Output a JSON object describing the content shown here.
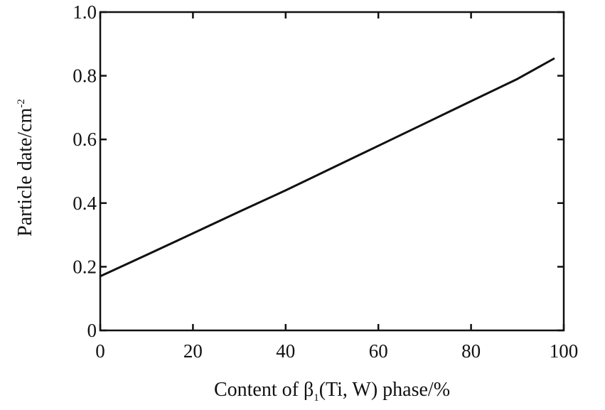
{
  "chart_data": {
    "type": "line",
    "xlabel": {
      "prefix": "Content of  β",
      "subscript": "1",
      "suffix": "(Ti, W) phase/%"
    },
    "ylabel": {
      "main": "Particle date/cm",
      "superscript": "-2"
    },
    "xlim": [
      0,
      100
    ],
    "ylim": [
      0,
      1.0
    ],
    "x_ticks": [
      0,
      20,
      40,
      60,
      80,
      100
    ],
    "x_tick_labels": [
      "0",
      "20",
      "40",
      "60",
      "80",
      "100"
    ],
    "y_ticks": [
      0,
      0.2,
      0.4,
      0.6,
      0.8,
      1.0
    ],
    "y_tick_labels": [
      "0",
      "0.2",
      "0.4",
      "0.6",
      "0.8",
      "1.0"
    ],
    "grid": false,
    "series": [
      {
        "x": [
          0,
          10,
          20,
          30,
          40,
          50,
          60,
          70,
          80,
          90,
          98
        ],
        "values": [
          0.17,
          0.237,
          0.305,
          0.373,
          0.44,
          0.51,
          0.58,
          0.65,
          0.72,
          0.79,
          0.855
        ]
      }
    ]
  }
}
